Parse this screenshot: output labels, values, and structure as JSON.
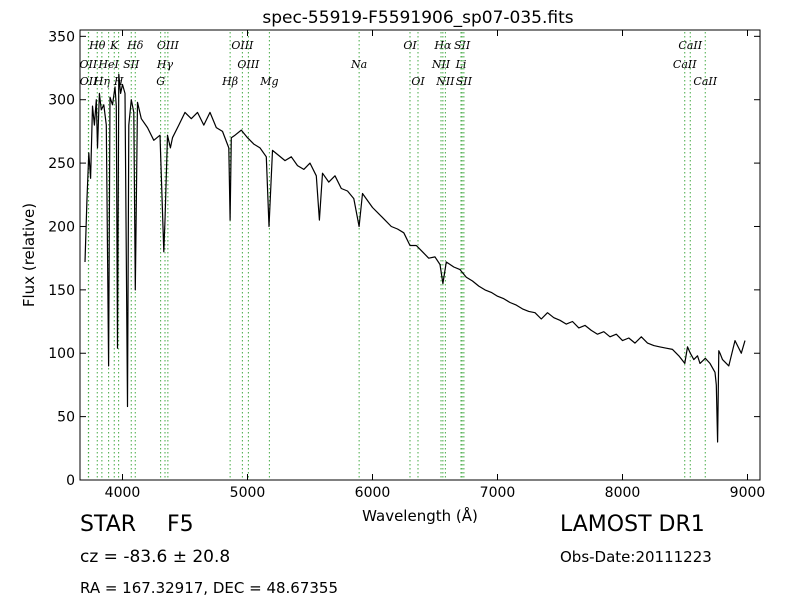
{
  "chart_data": {
    "type": "line",
    "title": "spec-55919-F5591906_sp07-035.fits",
    "xlabel": "Wavelength (Å)",
    "ylabel": "Flux (relative)",
    "xlim": [
      3660,
      9100
    ],
    "ylim": [
      0,
      355
    ],
    "xticks": [
      4000,
      5000,
      6000,
      7000,
      8000,
      9000
    ],
    "yticks": [
      0,
      50,
      100,
      150,
      200,
      250,
      300,
      350
    ],
    "grid": false,
    "line_color": "#000000",
    "marker_color": "#44aa44",
    "series": [
      {
        "x": [
          3700,
          3715,
          3730,
          3745,
          3760,
          3775,
          3790,
          3800,
          3815,
          3830,
          3850,
          3870,
          3889,
          3900,
          3920,
          3940,
          3950,
          3960,
          3970,
          3985,
          4000,
          4020,
          4040,
          4050,
          4070,
          4090,
          4102,
          4120,
          4150,
          4200,
          4250,
          4300,
          4330,
          4340,
          4360,
          4383,
          4400,
          4450,
          4500,
          4550,
          4600,
          4650,
          4700,
          4750,
          4800,
          4850,
          4861,
          4870,
          4900,
          4950,
          5000,
          5050,
          5100,
          5150,
          5172,
          5200,
          5250,
          5300,
          5350,
          5400,
          5450,
          5500,
          5550,
          5575,
          5600,
          5650,
          5700,
          5750,
          5800,
          5850,
          5893,
          5920,
          6000,
          6050,
          6100,
          6150,
          6200,
          6250,
          6300,
          6350,
          6400,
          6450,
          6500,
          6540,
          6563,
          6590,
          6650,
          6700,
          6750,
          6800,
          6850,
          6900,
          6950,
          7000,
          7050,
          7100,
          7150,
          7200,
          7250,
          7300,
          7350,
          7400,
          7450,
          7500,
          7550,
          7600,
          7650,
          7700,
          7750,
          7800,
          7850,
          7900,
          7950,
          8000,
          8050,
          8100,
          8150,
          8200,
          8250,
          8300,
          8350,
          8400,
          8450,
          8498,
          8520,
          8542,
          8570,
          8600,
          8620,
          8662,
          8700,
          8740,
          8750,
          8761,
          8770,
          8780,
          8800,
          8850,
          8900,
          8950,
          8980
        ],
        "y": [
          172,
          220,
          258,
          238,
          295,
          280,
          300,
          262,
          305,
          292,
          296,
          280,
          90,
          302,
          296,
          310,
          295,
          104,
          320,
          305,
          312,
          305,
          58,
          280,
          300,
          290,
          150,
          298,
          285,
          278,
          268,
          272,
          180,
          205,
          272,
          262,
          270,
          280,
          290,
          285,
          290,
          280,
          290,
          278,
          275,
          262,
          205,
          270,
          272,
          276,
          270,
          265,
          262,
          255,
          200,
          260,
          256,
          252,
          255,
          248,
          245,
          250,
          240,
          205,
          242,
          235,
          240,
          230,
          228,
          222,
          200,
          226,
          215,
          210,
          205,
          200,
          198,
          195,
          185,
          185,
          180,
          175,
          176,
          170,
          155,
          172,
          168,
          166,
          160,
          157,
          153,
          150,
          148,
          145,
          143,
          140,
          138,
          135,
          133,
          132,
          127,
          132,
          128,
          126,
          123,
          125,
          120,
          122,
          118,
          115,
          117,
          113,
          115,
          110,
          112,
          108,
          113,
          108,
          106,
          105,
          104,
          103,
          98,
          92,
          105,
          100,
          95,
          98,
          92,
          96,
          92,
          85,
          75,
          30,
          102,
          100,
          95,
          90,
          110,
          100,
          110
        ]
      }
    ],
    "line_markers": [
      {
        "label": "Hθ",
        "x": 3798,
        "row": 1
      },
      {
        "label": "Hη",
        "x": 3835,
        "row": 3
      },
      {
        "label": "OII",
        "x": 3727,
        "row": 2
      },
      {
        "label": "OII",
        "x": 3729,
        "row": 3
      },
      {
        "label": "HeI",
        "x": 3889,
        "row": 2
      },
      {
        "label": "K",
        "x": 3934,
        "row": 1
      },
      {
        "label": "H",
        "x": 3969,
        "row": 3
      },
      {
        "label": "SII",
        "x": 4070,
        "row": 2
      },
      {
        "label": "Hδ",
        "x": 4102,
        "row": 1
      },
      {
        "label": "OIII",
        "x": 4363,
        "row": 1
      },
      {
        "label": "Hγ",
        "x": 4340,
        "row": 2
      },
      {
        "label": "G",
        "x": 4305,
        "row": 3
      },
      {
        "label": "OIII",
        "x": 4959,
        "row": 1
      },
      {
        "label": "OIII",
        "x": 5007,
        "row": 2
      },
      {
        "label": "Hβ",
        "x": 4861,
        "row": 3
      },
      {
        "label": "Mg",
        "x": 5175,
        "row": 3
      },
      {
        "label": "Na",
        "x": 5893,
        "row": 2
      },
      {
        "label": "OI",
        "x": 6300,
        "row": 1
      },
      {
        "label": "OI",
        "x": 6364,
        "row": 3
      },
      {
        "label": "Hα",
        "x": 6563,
        "row": 1
      },
      {
        "label": "NII",
        "x": 6548,
        "row": 2
      },
      {
        "label": "NII",
        "x": 6583,
        "row": 3
      },
      {
        "label": "SII",
        "x": 6717,
        "row": 1
      },
      {
        "label": "Li",
        "x": 6708,
        "row": 2
      },
      {
        "label": "SII",
        "x": 6731,
        "row": 3
      },
      {
        "label": "CaII",
        "x": 8542,
        "row": 1
      },
      {
        "label": "CaII",
        "x": 8498,
        "row": 2
      },
      {
        "label": "CaII",
        "x": 8662,
        "row": 3
      }
    ]
  },
  "info": {
    "object_class": "STAR",
    "subclass": "F5",
    "cz": "cz = -83.6 ± 20.8",
    "radec": "RA = 167.32917, DEC = 48.67355",
    "survey": "LAMOST DR1",
    "obs_date": "Obs-Date:20111223"
  }
}
